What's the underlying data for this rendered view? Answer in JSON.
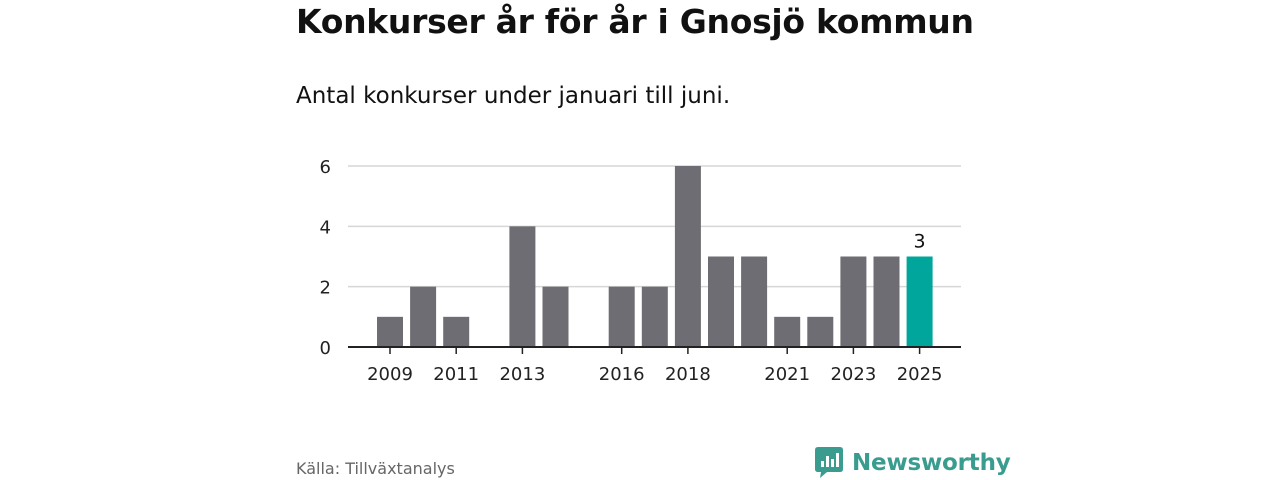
{
  "header": {
    "title": "Konkurser år för år i Gnosjö kommun",
    "subtitle": "Antal konkurser under januari till juni."
  },
  "footer": {
    "source": "Källa: Tillväxtanalys",
    "brand": "Newsworthy"
  },
  "colors": {
    "bar": "#6e6d73",
    "highlight": "#00a59b",
    "grid": "#d6d6d6",
    "axis": "#222222",
    "brand": "#3a9c8f"
  },
  "chart_data": {
    "type": "bar",
    "categories": [
      "2009",
      "2010",
      "2011",
      "2012",
      "2013",
      "2014",
      "2015",
      "2016",
      "2017",
      "2018",
      "2019",
      "2020",
      "2021",
      "2022",
      "2023",
      "2024",
      "2025"
    ],
    "values": [
      1,
      2,
      1,
      0,
      4,
      2,
      0,
      2,
      2,
      6,
      3,
      3,
      1,
      1,
      3,
      3,
      3
    ],
    "x_tick_labels": [
      "2009",
      "2011",
      "2013",
      "2016",
      "2018",
      "2021",
      "2023",
      "2025"
    ],
    "y_ticks": [
      0,
      2,
      4,
      6
    ],
    "ylim": [
      0,
      6
    ],
    "grid": true,
    "highlight_category": "2025",
    "data_labels": [
      {
        "category": "2025",
        "text": "3"
      }
    ]
  }
}
